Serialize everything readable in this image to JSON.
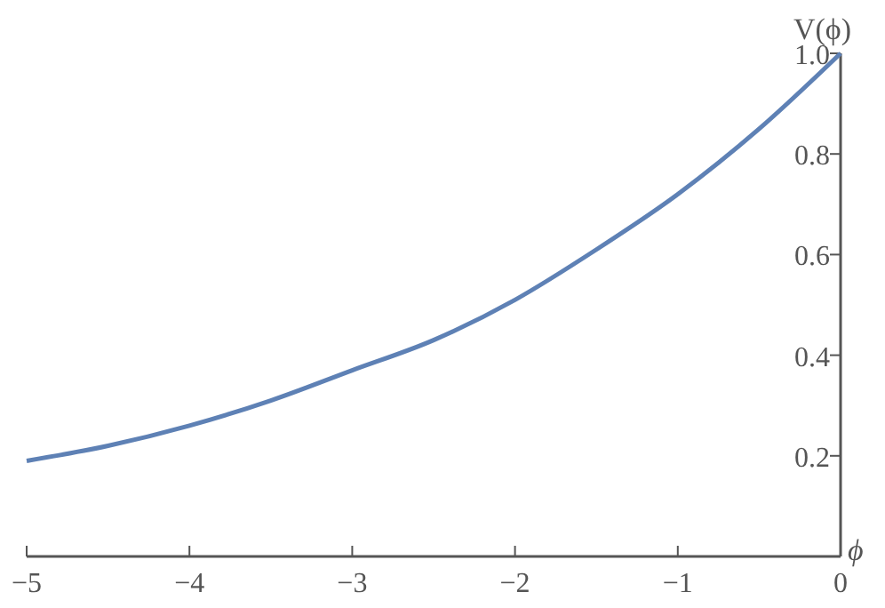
{
  "chart_data": {
    "type": "line",
    "xlabel": "ϕ",
    "ylabel": "V(ϕ)",
    "x": [
      -5,
      -4.5,
      -4,
      -3.5,
      -3,
      -2.5,
      -2,
      -1.5,
      -1,
      -0.5,
      0
    ],
    "series": [
      {
        "color": "#5e81b5",
        "values": [
          0.19,
          0.22,
          0.26,
          0.31,
          0.37,
          0.43,
          0.51,
          0.61,
          0.72,
          0.85,
          1.0
        ]
      }
    ],
    "xlim": [
      -5,
      0
    ],
    "ylim": [
      0,
      1.0
    ],
    "xticks": [
      {
        "value": -5,
        "label": "−5"
      },
      {
        "value": -4,
        "label": "−4"
      },
      {
        "value": -3,
        "label": "−3"
      },
      {
        "value": -2,
        "label": "−2"
      },
      {
        "value": -1,
        "label": "−1"
      },
      0
    ],
    "yticks": [
      0.2,
      0.4,
      0.6,
      0.8,
      {
        "value": 1,
        "label": "1.0"
      }
    ],
    "grid": false,
    "marker": "none",
    "line_style": "solid"
  }
}
